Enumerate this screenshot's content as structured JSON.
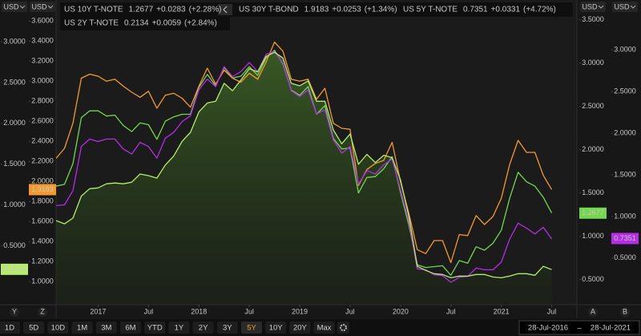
{
  "chart_data": {
    "type": "line",
    "x": [
      "2016-08",
      "2016-09",
      "2016-10",
      "2016-11",
      "2016-12",
      "2017-01",
      "2017-02",
      "2017-03",
      "2017-04",
      "2017-05",
      "2017-06",
      "2017-07",
      "2017-08",
      "2017-09",
      "2017-10",
      "2017-11",
      "2017-12",
      "2018-01",
      "2018-02",
      "2018-03",
      "2018-04",
      "2018-05",
      "2018-06",
      "2018-07",
      "2018-08",
      "2018-09",
      "2018-10",
      "2018-11",
      "2018-12",
      "2019-01",
      "2019-02",
      "2019-03",
      "2019-04",
      "2019-05",
      "2019-06",
      "2019-07",
      "2019-08",
      "2019-09",
      "2019-10",
      "2019-11",
      "2019-12",
      "2020-01",
      "2020-02",
      "2020-03",
      "2020-04",
      "2020-05",
      "2020-06",
      "2020-07",
      "2020-08",
      "2020-09",
      "2020-10",
      "2020-11",
      "2020-12",
      "2021-01",
      "2021-02",
      "2021-03",
      "2021-04",
      "2021-05",
      "2021-06",
      "2021-07"
    ],
    "xlim": [
      "2016-08",
      "2021-10"
    ],
    "xticks": [
      {
        "value": "2017-01",
        "label": "2017"
      },
      {
        "value": "2017-07",
        "label": "Jul"
      },
      {
        "value": "2018-01",
        "label": "2018"
      },
      {
        "value": "2018-07",
        "label": "Jul"
      },
      {
        "value": "2019-01",
        "label": "2019"
      },
      {
        "value": "2019-07",
        "label": "Jul"
      },
      {
        "value": "2020-01",
        "label": "2020"
      },
      {
        "value": "2020-07",
        "label": "Jul"
      },
      {
        "value": "2021-01",
        "label": "2021"
      },
      {
        "value": "2021-07",
        "label": "Jul"
      }
    ],
    "axes": [
      {
        "side": "left",
        "unit": "USD",
        "letter": "Y",
        "ylim": [
          -0.22,
          3.51
        ],
        "yticks": [
          {
            "value": 0.5,
            "label": "0.5000"
          },
          {
            "value": 1,
            "label": "1.0000"
          },
          {
            "value": 1.5,
            "label": "1.5000"
          },
          {
            "value": 2,
            "label": "2.0000"
          },
          {
            "value": 2.5,
            "label": "2.5000"
          },
          {
            "value": 3,
            "label": "3.0000"
          }
        ]
      },
      {
        "side": "left",
        "unit": "USD",
        "letter": "Z",
        "ylim": [
          0.77,
          3.81
        ],
        "yticks": [
          {
            "value": 1,
            "label": "1.0000"
          },
          {
            "value": 1.2,
            "label": "1.2000"
          },
          {
            "value": 1.4,
            "label": "1.4000"
          },
          {
            "value": 1.6,
            "label": "1.6000"
          },
          {
            "value": 1.8,
            "label": "1.8000"
          },
          {
            "value": 2,
            "label": "2.0000"
          },
          {
            "value": 2.2,
            "label": "2.2000"
          },
          {
            "value": 2.4,
            "label": "2.4000"
          },
          {
            "value": 2.6,
            "label": "2.6000"
          },
          {
            "value": 2.8,
            "label": "2.8000"
          },
          {
            "value": 3,
            "label": "3.0000"
          },
          {
            "value": 3.2,
            "label": "3.2000"
          },
          {
            "value": 3.4,
            "label": "3.4000"
          },
          {
            "value": 3.6,
            "label": "3.6000"
          }
        ]
      },
      {
        "side": "right",
        "unit": "USD",
        "letter": "A",
        "ylim": [
          0.21,
          3.73
        ],
        "yticks": [
          {
            "value": 0.5,
            "label": "0.5000"
          },
          {
            "value": 1,
            "label": "1.0000"
          },
          {
            "value": 1.5,
            "label": "1.5000"
          },
          {
            "value": 2,
            "label": "2.0000"
          },
          {
            "value": 2.5,
            "label": "2.5000"
          },
          {
            "value": 3,
            "label": "3.0000"
          },
          {
            "value": 3.5,
            "label": "3.5000"
          }
        ]
      },
      {
        "side": "right",
        "unit": "USD",
        "letter": "B",
        "ylim": [
          -0.06,
          3.6
        ],
        "yticks": [
          {
            "value": 0.5,
            "label": "0.5000"
          },
          {
            "value": 1,
            "label": "1.0000"
          },
          {
            "value": 1.5,
            "label": "1.5000"
          },
          {
            "value": 2,
            "label": "2.0000"
          },
          {
            "value": 2.5,
            "label": "2.5000"
          },
          {
            "value": 3,
            "label": "3.0000"
          }
        ]
      }
    ],
    "series": [
      {
        "name": "US 10Y T-NOTE",
        "color": "#72d84c",
        "axis": 2,
        "last": 1.2677,
        "change": "+0.0283",
        "change_pct": "(+2.28%)",
        "values": [
          1.58,
          1.6,
          1.84,
          2.37,
          2.45,
          2.45,
          2.39,
          2.4,
          2.28,
          2.21,
          2.31,
          2.29,
          2.12,
          2.33,
          2.38,
          2.41,
          2.41,
          2.72,
          2.87,
          2.74,
          2.95,
          2.83,
          2.85,
          2.96,
          2.86,
          3.06,
          3.15,
          2.99,
          2.69,
          2.63,
          2.73,
          2.41,
          2.51,
          2.13,
          2.01,
          2.02,
          1.5,
          1.68,
          1.69,
          1.78,
          1.92,
          1.51,
          1.13,
          0.67,
          0.64,
          0.65,
          0.66,
          0.55,
          0.72,
          0.69,
          0.88,
          0.84,
          0.92,
          1.07,
          1.44,
          1.74,
          1.63,
          1.58,
          1.45,
          1.27
        ]
      },
      {
        "name": "US 30Y T-BOND",
        "color": "#f39a2b",
        "axis": 1,
        "last": 1.9183,
        "change": "+0.0253",
        "change_pct": "(+1.34%)",
        "values": [
          2.23,
          2.33,
          2.58,
          3.03,
          3.07,
          3.05,
          3.0,
          3.02,
          2.95,
          2.89,
          2.84,
          2.9,
          2.73,
          2.86,
          2.88,
          2.83,
          2.74,
          2.95,
          3.13,
          2.97,
          3.11,
          3.03,
          2.99,
          3.08,
          3.02,
          3.19,
          3.39,
          3.3,
          3.02,
          3.0,
          3.02,
          2.82,
          2.93,
          2.58,
          2.53,
          2.52,
          1.96,
          2.12,
          2.18,
          2.21,
          2.39,
          2.0,
          1.68,
          1.32,
          1.28,
          1.41,
          1.41,
          1.19,
          1.47,
          1.46,
          1.66,
          1.57,
          1.65,
          1.83,
          2.17,
          2.41,
          2.29,
          2.29,
          2.06,
          1.92
        ]
      },
      {
        "name": "US 5Y T-NOTE",
        "color": "#b52de8",
        "axis": 3,
        "last": 0.7351,
        "change": "+0.0331",
        "change_pct": "(+4.72%)",
        "values": [
          1.13,
          1.14,
          1.31,
          1.84,
          1.93,
          1.9,
          1.93,
          1.93,
          1.81,
          1.75,
          1.89,
          1.84,
          1.7,
          1.94,
          2.01,
          2.14,
          2.21,
          2.52,
          2.65,
          2.56,
          2.8,
          2.68,
          2.74,
          2.85,
          2.74,
          2.95,
          2.98,
          2.84,
          2.51,
          2.44,
          2.52,
          2.23,
          2.28,
          1.92,
          1.76,
          1.84,
          1.39,
          1.55,
          1.51,
          1.62,
          1.69,
          1.32,
          0.94,
          0.37,
          0.36,
          0.3,
          0.29,
          0.21,
          0.27,
          0.28,
          0.38,
          0.36,
          0.36,
          0.45,
          0.73,
          0.92,
          0.86,
          0.79,
          0.87,
          0.73
        ]
      },
      {
        "name": "US 2Y T-NOTE",
        "color": "#b5ec6a",
        "axis": 0,
        "area": true,
        "last": 0.2134,
        "change": "+0.0059",
        "change_pct": "(+2.84%)",
        "values": [
          0.81,
          0.77,
          0.84,
          1.11,
          1.2,
          1.21,
          1.26,
          1.27,
          1.26,
          1.28,
          1.38,
          1.36,
          1.33,
          1.49,
          1.6,
          1.78,
          1.89,
          2.14,
          2.25,
          2.27,
          2.49,
          2.4,
          2.53,
          2.67,
          2.63,
          2.82,
          2.87,
          2.8,
          2.49,
          2.46,
          2.52,
          2.27,
          2.27,
          1.92,
          1.75,
          1.87,
          1.5,
          1.62,
          1.52,
          1.61,
          1.58,
          1.31,
          0.86,
          0.25,
          0.2,
          0.16,
          0.15,
          0.11,
          0.13,
          0.13,
          0.15,
          0.15,
          0.12,
          0.11,
          0.13,
          0.16,
          0.16,
          0.14,
          0.25,
          0.21
        ]
      }
    ]
  },
  "toolbar": {
    "ranges": [
      "1D",
      "5D",
      "10D",
      "1M",
      "3M",
      "6M",
      "YTD",
      "1Y",
      "2Y",
      "3Y",
      "5Y",
      "10Y",
      "20Y",
      "Max"
    ],
    "selected": 10,
    "date_from": "28-Jul-2016",
    "date_separator": "–",
    "date_to": "28-Jul-2021"
  }
}
